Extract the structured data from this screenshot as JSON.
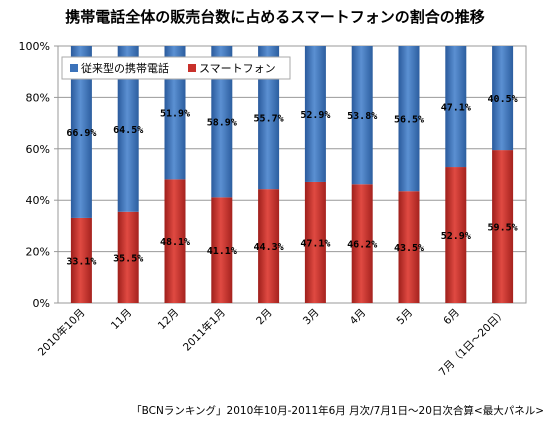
{
  "chart_data": {
    "type": "bar",
    "stacked": true,
    "title": "携帯電話全体の販売台数に占めるスマートフォンの割合の推移",
    "source": "「BCNランキング」2010年10月-2011年6月 月次/7月1日～20日次合算<最大パネル>",
    "categories": [
      "2010年10月",
      "11月",
      "12月",
      "2011年1月",
      "2月",
      "3月",
      "4月",
      "5月",
      "6月",
      "7月（1日～20日）"
    ],
    "series": [
      {
        "name": "スマートフォン",
        "color": "#c8302b",
        "values": [
          33.1,
          35.5,
          48.1,
          41.1,
          44.3,
          47.1,
          46.2,
          43.5,
          52.9,
          59.5
        ],
        "labels": [
          "33.1%",
          "35.5%",
          "48.1%",
          "41.1%",
          "44.3%",
          "47.1%",
          "46.2%",
          "43.5%",
          "52.9%",
          "59.5%"
        ]
      },
      {
        "name": "従来型の携帯電話",
        "color": "#3c73ba",
        "values": [
          66.9,
          64.5,
          51.9,
          58.9,
          55.7,
          52.9,
          53.8,
          56.5,
          47.1,
          40.5
        ],
        "labels": [
          "66.9%",
          "64.5%",
          "51.9%",
          "58.9%",
          "55.7%",
          "52.9%",
          "53.8%",
          "56.5%",
          "47.1%",
          "40.5%"
        ]
      }
    ],
    "legend_order": [
      "従来型の携帯電話",
      "スマートフォン"
    ],
    "legend_position": "top-left",
    "ylim": [
      0,
      100
    ],
    "yticks": [
      "0%",
      "20%",
      "40%",
      "60%",
      "80%",
      "100%"
    ],
    "grid": true
  }
}
